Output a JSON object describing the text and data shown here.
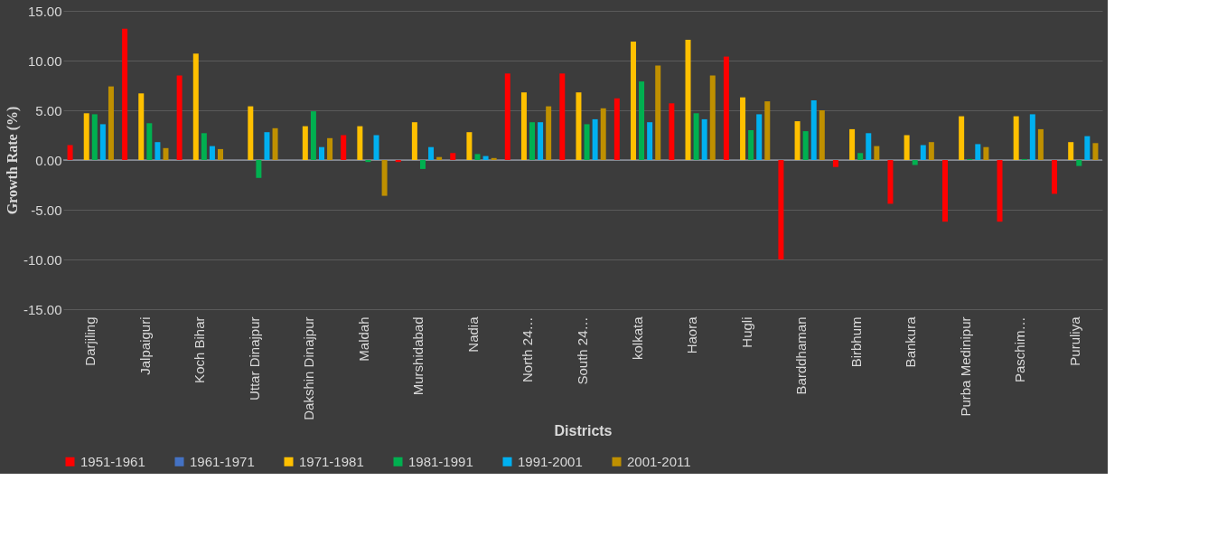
{
  "chart_data": {
    "type": "bar",
    "xlabel": "Districts",
    "ylabel": "Growth Rate (%)",
    "categories": [
      "Darjiling",
      "Jalpaiguri",
      "Koch Bihar",
      "Uttar Dinajpur",
      "Dakshin Dinajpur",
      "Maldah",
      "Murshidabad",
      "Nadia",
      "North 24…",
      "South 24…",
      "kolkata",
      "Haora",
      "Hugli",
      "Barddhaman",
      "Birbhum",
      "Bankura",
      "Purba Medinipur",
      "Paschim…",
      "Puruliya"
    ],
    "series": [
      {
        "name": "1951-1961",
        "color": "#ff0000",
        "values": [
          1.5,
          13.2,
          8.5,
          0,
          0,
          2.5,
          -0.2,
          0.7,
          8.7,
          8.7,
          6.2,
          5.7,
          10.4,
          -10.0,
          -0.7,
          -4.4,
          -6.2,
          -6.2,
          -3.4
        ]
      },
      {
        "name": "1961-1971",
        "color": "#4472c4",
        "values": [
          0,
          0,
          0,
          0,
          0,
          0,
          0,
          0,
          0,
          0,
          0,
          0,
          0,
          0,
          0,
          0,
          0,
          0,
          0
        ]
      },
      {
        "name": "1971-1981",
        "color": "#ffc000",
        "values": [
          4.7,
          6.7,
          10.7,
          5.4,
          3.4,
          3.4,
          3.8,
          2.8,
          6.8,
          6.8,
          11.9,
          12.1,
          6.3,
          3.9,
          3.1,
          2.5,
          4.4,
          4.4,
          1.8
        ]
      },
      {
        "name": "1981-1991",
        "color": "#00b050",
        "values": [
          4.6,
          3.7,
          2.7,
          -1.8,
          4.9,
          -0.2,
          -0.9,
          0.6,
          3.8,
          3.6,
          7.9,
          4.7,
          3.0,
          2.9,
          0.7,
          -0.5,
          0.1,
          0.1,
          -0.6
        ]
      },
      {
        "name": "1991-2001",
        "color": "#00b0f0",
        "values": [
          3.6,
          1.8,
          1.4,
          2.8,
          1.3,
          2.5,
          1.3,
          0.4,
          3.8,
          4.1,
          3.8,
          4.1,
          4.6,
          6.0,
          2.7,
          1.5,
          1.6,
          4.6,
          2.4
        ]
      },
      {
        "name": "2001-2011",
        "color": "#bf9000",
        "values": [
          7.4,
          1.2,
          1.1,
          3.2,
          2.2,
          -3.6,
          0.3,
          0.2,
          5.4,
          5.2,
          9.5,
          8.5,
          5.9,
          5.0,
          1.4,
          1.8,
          1.3,
          3.1,
          1.7
        ]
      }
    ],
    "ylim": [
      -15,
      15
    ],
    "yticks": [
      {
        "value": -15,
        "label": "-15.00"
      },
      {
        "value": -10,
        "label": "-10.00"
      },
      {
        "value": -5,
        "label": "-5.00"
      },
      {
        "value": 0,
        "label": "0.00"
      },
      {
        "value": 5,
        "label": "5.00"
      },
      {
        "value": 10,
        "label": "10.00"
      },
      {
        "value": 15,
        "label": "15.00"
      }
    ],
    "grid": "y",
    "legend": "bottom"
  }
}
